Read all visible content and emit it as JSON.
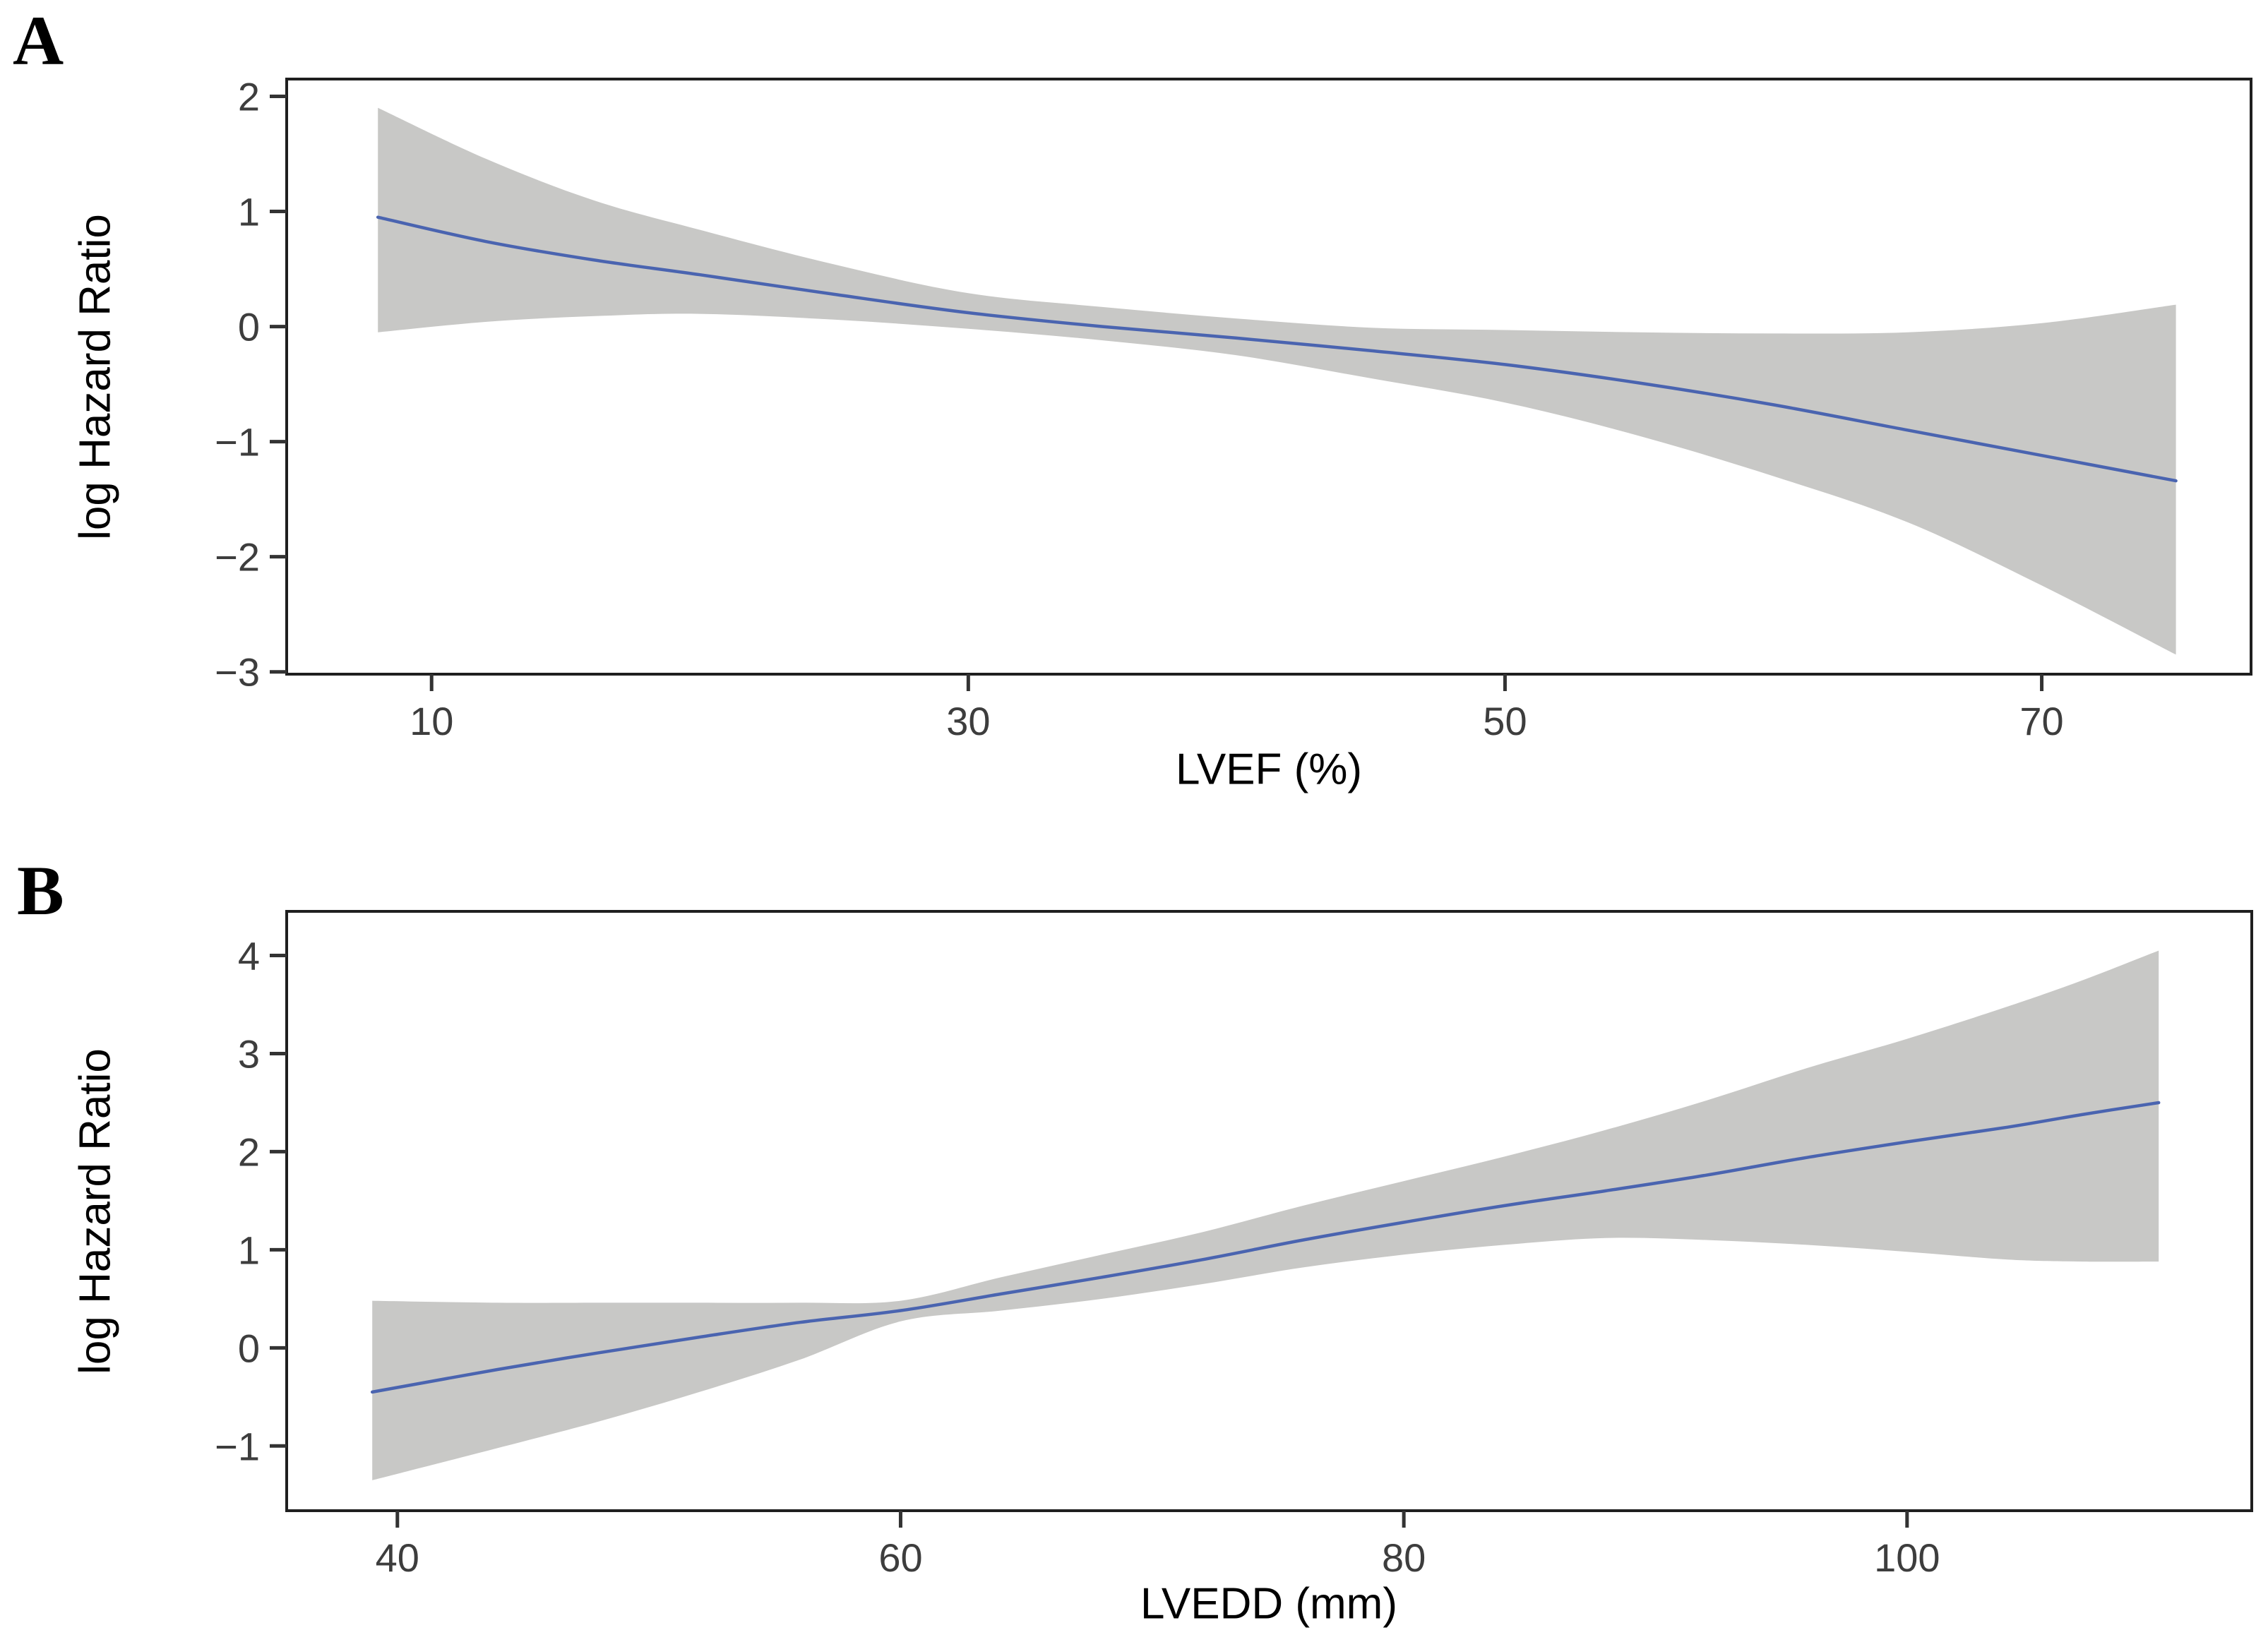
{
  "figure": {
    "background": "#ffffff",
    "description": "Two-panel restricted cubic spline figure: association of LVEF and LVEDD with log Hazard Ratio, blue estimate line with gray 95% confidence band"
  },
  "colors": {
    "line": "#4a64b0",
    "band": "#c8c8c6",
    "panel_border": "#1f1f1f",
    "tick_mark": "#333333",
    "tick_label": "#3d3d3d",
    "axis_label": "#000000"
  },
  "chart_data": [
    {
      "type": "line",
      "panel_label": "A",
      "title": "",
      "xlabel": "LVEF (%)",
      "ylabel": "log Hazard Ratio",
      "grid": false,
      "legend": false,
      "xlim": [
        4.6,
        77.8
      ],
      "ylim": [
        -3.02,
        2.15
      ],
      "xticks": [
        10,
        30,
        50,
        70
      ],
      "xtick_labels": [
        "10",
        "30",
        "50",
        "70"
      ],
      "yticks": [
        2,
        1,
        0,
        -1,
        -2,
        -3
      ],
      "ytick_labels": [
        "2",
        "1",
        "0",
        "−1",
        "−2",
        "−3"
      ],
      "x": [
        8,
        12,
        16,
        20,
        25,
        30,
        35,
        40,
        45,
        50,
        55,
        60,
        65,
        70,
        75
      ],
      "series": [
        {
          "name": "estimate",
          "values": [
            0.95,
            0.74,
            0.58,
            0.45,
            0.28,
            0.12,
            0.0,
            -0.1,
            -0.21,
            -0.33,
            -0.49,
            -0.68,
            -0.9,
            -1.12,
            -1.34
          ]
        },
        {
          "name": "ci_lower",
          "values": [
            -0.05,
            0.04,
            0.09,
            0.11,
            0.06,
            -0.02,
            -0.12,
            -0.25,
            -0.45,
            -0.66,
            -0.95,
            -1.3,
            -1.7,
            -2.25,
            -2.85
          ]
        },
        {
          "name": "ci_upper",
          "values": [
            1.9,
            1.46,
            1.1,
            0.84,
            0.54,
            0.29,
            0.17,
            0.07,
            -0.01,
            -0.03,
            -0.05,
            -0.06,
            -0.05,
            0.03,
            0.19
          ]
        }
      ]
    },
    {
      "type": "line",
      "panel_label": "B",
      "title": "",
      "xlabel": "LVEDD (mm)",
      "ylabel": "log Hazard Ratio",
      "grid": false,
      "legend": false,
      "xlim": [
        35.6,
        113.7
      ],
      "ylim": [
        -1.66,
        4.45
      ],
      "xticks": [
        40,
        60,
        80,
        100
      ],
      "xtick_labels": [
        "40",
        "60",
        "80",
        "100"
      ],
      "yticks": [
        4,
        3,
        2,
        1,
        0,
        -1
      ],
      "ytick_labels": [
        "4",
        "3",
        "2",
        "1",
        "0",
        "−1"
      ],
      "x": [
        39,
        44,
        48,
        52,
        56,
        60,
        64,
        68,
        72,
        76,
        80,
        84,
        88,
        92,
        96,
        100,
        104,
        107,
        110
      ],
      "series": [
        {
          "name": "estimate",
          "values": [
            -0.45,
            -0.22,
            -0.05,
            0.11,
            0.26,
            0.38,
            0.55,
            0.72,
            0.9,
            1.1,
            1.28,
            1.45,
            1.6,
            1.76,
            1.94,
            2.1,
            2.25,
            2.38,
            2.5
          ]
        },
        {
          "name": "ci_lower",
          "values": [
            -1.35,
            -1.02,
            -0.75,
            -0.45,
            -0.12,
            0.27,
            0.38,
            0.5,
            0.65,
            0.82,
            0.95,
            1.05,
            1.12,
            1.1,
            1.05,
            0.98,
            0.9,
            0.88,
            0.88
          ]
        },
        {
          "name": "ci_upper",
          "values": [
            0.48,
            0.46,
            0.46,
            0.46,
            0.46,
            0.48,
            0.72,
            0.95,
            1.18,
            1.45,
            1.7,
            1.95,
            2.22,
            2.52,
            2.85,
            3.15,
            3.48,
            3.75,
            4.05
          ]
        }
      ]
    }
  ]
}
